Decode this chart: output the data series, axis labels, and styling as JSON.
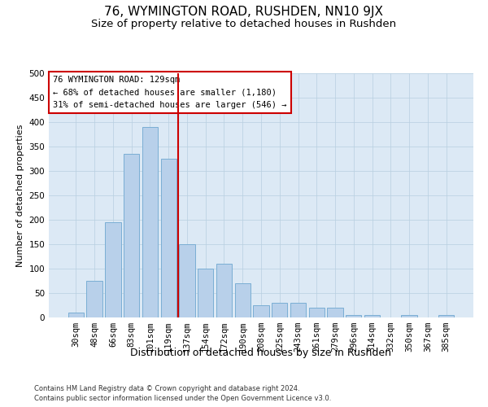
{
  "title": "76, WYMINGTON ROAD, RUSHDEN, NN10 9JX",
  "subtitle": "Size of property relative to detached houses in Rushden",
  "xlabel": "Distribution of detached houses by size in Rushden",
  "ylabel": "Number of detached properties",
  "categories": [
    "30sqm",
    "48sqm",
    "66sqm",
    "83sqm",
    "101sqm",
    "119sqm",
    "137sqm",
    "154sqm",
    "172sqm",
    "190sqm",
    "208sqm",
    "225sqm",
    "243sqm",
    "261sqm",
    "279sqm",
    "296sqm",
    "314sqm",
    "332sqm",
    "350sqm",
    "367sqm",
    "385sqm"
  ],
  "values": [
    10,
    75,
    195,
    335,
    390,
    325,
    150,
    100,
    110,
    70,
    25,
    30,
    30,
    20,
    20,
    5,
    5,
    0,
    5,
    0,
    5
  ],
  "bar_color": "#b8d0ea",
  "bar_edgecolor": "#7aaed4",
  "background_color": "#dce9f5",
  "vline_color": "#cc0000",
  "annotation_text": "76 WYMINGTON ROAD: 129sqm\n← 68% of detached houses are smaller (1,180)\n31% of semi-detached houses are larger (546) →",
  "annotation_box_color": "#ffffff",
  "annotation_box_edgecolor": "#cc0000",
  "footer1": "Contains HM Land Registry data © Crown copyright and database right 2024.",
  "footer2": "Contains public sector information licensed under the Open Government Licence v3.0.",
  "ylim": [
    0,
    500
  ],
  "yticks": [
    0,
    50,
    100,
    150,
    200,
    250,
    300,
    350,
    400,
    450,
    500
  ],
  "title_fontsize": 11,
  "subtitle_fontsize": 9.5,
  "xlabel_fontsize": 9,
  "ylabel_fontsize": 8,
  "tick_fontsize": 7.5,
  "annotation_fontsize": 7.5,
  "footer_fontsize": 6
}
